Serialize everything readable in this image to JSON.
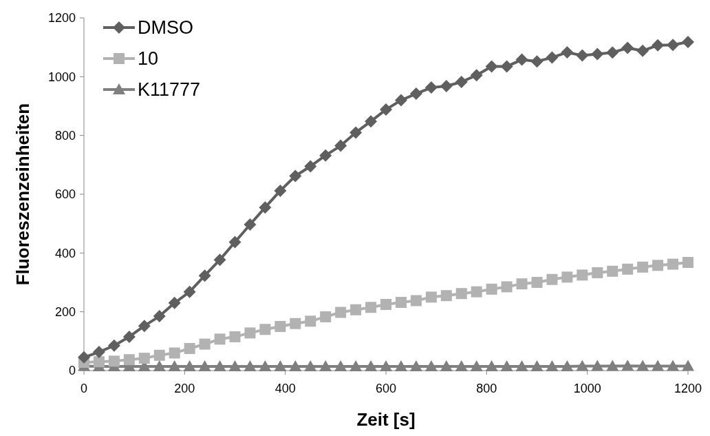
{
  "chart_data": {
    "type": "line",
    "xlabel": "Zeit [s]",
    "ylabel": "Fluoreszenzeinheiten",
    "x": [
      0,
      30,
      60,
      90,
      120,
      150,
      180,
      210,
      240,
      270,
      300,
      330,
      360,
      390,
      420,
      450,
      480,
      510,
      540,
      570,
      600,
      630,
      660,
      690,
      720,
      750,
      780,
      810,
      840,
      870,
      900,
      930,
      960,
      990,
      1020,
      1050,
      1080,
      1110,
      1140,
      1170,
      1200
    ],
    "series": [
      {
        "name": "DMSO",
        "color": "#5f5f5f",
        "marker": "diamond",
        "values": [
          45,
          63,
          85,
          115,
          152,
          185,
          230,
          268,
          323,
          377,
          437,
          497,
          555,
          612,
          662,
          695,
          732,
          765,
          810,
          848,
          888,
          920,
          942,
          963,
          968,
          982,
          1005,
          1035,
          1035,
          1058,
          1052,
          1065,
          1083,
          1072,
          1077,
          1082,
          1098,
          1088,
          1107,
          1108,
          1118
        ]
      },
      {
        "name": "10",
        "color": "#b2b2b2",
        "marker": "square",
        "values": [
          28,
          30,
          32,
          37,
          42,
          52,
          60,
          75,
          90,
          107,
          115,
          128,
          140,
          150,
          160,
          168,
          183,
          198,
          207,
          215,
          225,
          232,
          238,
          250,
          255,
          262,
          268,
          277,
          285,
          295,
          300,
          310,
          318,
          325,
          333,
          338,
          345,
          352,
          358,
          362,
          368
        ]
      },
      {
        "name": "K11777",
        "color": "#7f7f7f",
        "marker": "triangle",
        "values": [
          15,
          14,
          14,
          14,
          14,
          14,
          14,
          14,
          14,
          14,
          14,
          14,
          14,
          14,
          14,
          14,
          14,
          14,
          14,
          14,
          14,
          14,
          14,
          14,
          14,
          14,
          14,
          14,
          14,
          14,
          14,
          14,
          14,
          15,
          15,
          15,
          16,
          15,
          15,
          15,
          15
        ]
      }
    ],
    "xlim": [
      0,
      1200
    ],
    "xticks": [
      0,
      200,
      400,
      600,
      800,
      1000,
      1200
    ],
    "ylim": [
      0,
      1200
    ],
    "yticks": [
      0,
      200,
      400,
      600,
      800,
      1000,
      1200
    ],
    "grid": false,
    "legend": "top left"
  }
}
